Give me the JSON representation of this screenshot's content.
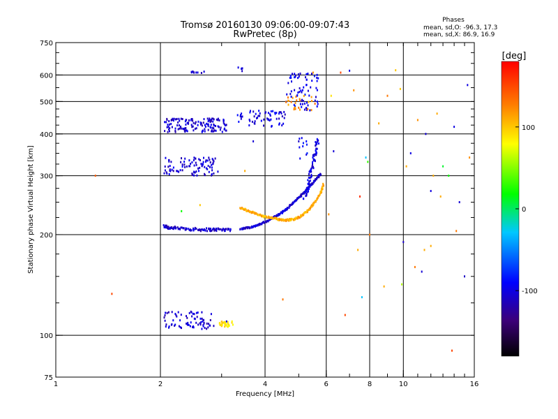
{
  "chart_data": {
    "type": "scatter",
    "title_line1": "Tromsø 20160130 09:06:00-09:07:43",
    "title_line2": "RwPretec (8p)",
    "stats": {
      "heading": "Phases",
      "line_o": "mean, sd,O: -96.3, 17.3",
      "line_x": "mean, sd,X:  86.9, 16.9"
    },
    "xlabel": "Frequency [MHz]",
    "ylabel": "Stationary phase Virtual Height [km]",
    "x_scale": "log",
    "y_scale": "log",
    "xlim": [
      1,
      16
    ],
    "ylim": [
      75,
      750
    ],
    "x_ticks": [
      {
        "value": 1,
        "label": "1"
      },
      {
        "value": 2,
        "label": "2"
      },
      {
        "value": 4,
        "label": "4"
      },
      {
        "value": 6,
        "label": "6"
      },
      {
        "value": 8,
        "label": "8"
      },
      {
        "value": 10,
        "label": "10"
      },
      {
        "value": 16,
        "label": "16"
      }
    ],
    "x_gridlines": [
      2,
      4,
      6,
      8,
      10
    ],
    "y_ticks": [
      {
        "value": 75,
        "label": "75"
      },
      {
        "value": 100,
        "label": "100"
      },
      {
        "value": 200,
        "label": "200"
      },
      {
        "value": 300,
        "label": "300"
      },
      {
        "value": 400,
        "label": "400"
      },
      {
        "value": 500,
        "label": "500"
      },
      {
        "value": 600,
        "label": "600"
      },
      {
        "value": 750,
        "label": "750"
      }
    ],
    "y_gridlines": [
      100,
      200,
      300,
      400,
      500,
      600
    ],
    "grid": true,
    "colorbar": {
      "label": "[deg]",
      "range": [
        -180,
        180
      ],
      "ticks": [
        {
          "value": 100,
          "label": "100"
        },
        {
          "value": 0,
          "label": "0"
        },
        {
          "value": -100,
          "label": "-100"
        }
      ]
    },
    "series": [
      {
        "type": "curve",
        "phase": -110,
        "x": [
          2.05,
          2.1,
          2.2,
          2.4,
          2.6,
          2.8,
          3.0,
          3.2
        ],
        "y": [
          212,
          210,
          209,
          208,
          207,
          207,
          207,
          207
        ],
        "jitter_h": 0.01,
        "jitter_f": 0.01,
        "dup": 2
      },
      {
        "type": "curve",
        "phase": -105,
        "x": [
          3.4,
          3.6,
          3.8,
          4.0,
          4.2,
          4.4,
          4.6,
          4.8,
          5.0,
          5.2,
          5.4,
          5.6,
          5.8
        ],
        "y": [
          208,
          210,
          213,
          218,
          224,
          230,
          238,
          248,
          258,
          268,
          280,
          292,
          305
        ],
        "jitter_h": 0.005,
        "jitter_f": 0.004,
        "dup": 2
      },
      {
        "type": "curve",
        "phase": 110,
        "x": [
          3.4,
          3.6,
          3.8,
          4.0,
          4.2,
          4.4,
          4.6,
          4.8,
          5.0,
          5.2,
          5.4,
          5.6,
          5.8,
          5.9
        ],
        "y": [
          240,
          235,
          230,
          226,
          224,
          222,
          221,
          222,
          225,
          231,
          240,
          252,
          268,
          285
        ],
        "jitter_h": 0.006,
        "jitter_f": 0.004,
        "dup": 2
      },
      {
        "type": "curve",
        "phase": -100,
        "x": [
          5.2,
          5.3,
          5.4,
          5.5,
          5.6,
          5.7
        ],
        "y": [
          260,
          275,
          300,
          330,
          360,
          390
        ],
        "jitter_h": 0.02,
        "jitter_f": 0.01,
        "dup": 2
      },
      {
        "type": "band",
        "phase": -105,
        "fmin": 2.05,
        "fmax": 2.95,
        "hmin": 300,
        "hmax": 340,
        "n": 95
      },
      {
        "type": "band",
        "phase": -108,
        "fmin": 2.05,
        "fmax": 3.1,
        "hmin": 405,
        "hmax": 445,
        "n": 140
      },
      {
        "type": "band",
        "phase": -100,
        "fmin": 3.3,
        "fmax": 4.6,
        "hmin": 420,
        "hmax": 470,
        "n": 60
      },
      {
        "type": "band",
        "phase": -95,
        "fmin": 4.6,
        "fmax": 5.7,
        "hmin": 470,
        "hmax": 610,
        "n": 70
      },
      {
        "type": "band",
        "phase": 120,
        "fmin": 4.5,
        "fmax": 5.6,
        "hmin": 470,
        "hmax": 520,
        "n": 25
      },
      {
        "type": "band",
        "phase": -105,
        "fmin": 2.05,
        "fmax": 2.85,
        "hmin": 104,
        "hmax": 118,
        "n": 75
      },
      {
        "type": "band",
        "phase": 90,
        "fmin": 2.95,
        "fmax": 3.25,
        "hmin": 106,
        "hmax": 110,
        "n": 30
      },
      {
        "type": "band",
        "phase": -112,
        "fmin": 2.45,
        "fmax": 2.7,
        "hmin": 608,
        "hmax": 615,
        "n": 10
      },
      {
        "type": "band",
        "phase": -105,
        "fmin": 3.35,
        "fmax": 3.45,
        "hmin": 615,
        "hmax": 640,
        "n": 5
      },
      {
        "type": "band",
        "phase": -90,
        "fmin": 5.0,
        "fmax": 5.3,
        "hmin": 330,
        "hmax": 400,
        "n": 10
      },
      {
        "type": "points",
        "x": [
          1.3,
          1.45,
          2.3,
          2.6,
          3.1,
          3.5,
          3.7,
          4.5,
          5.0,
          5.5,
          6.2,
          6.6,
          7.0,
          7.2,
          7.5,
          7.8,
          8.5,
          9.0,
          9.5,
          10.5,
          11.0,
          11.5,
          12.0,
          12.5,
          13.5,
          14.5,
          15.0,
          6.3,
          7.4,
          8.0,
          9.8,
          10.2,
          11.3,
          12.2,
          13.0,
          14.0,
          15.5,
          6.8,
          7.6,
          8.8,
          9.9,
          10.8,
          11.6,
          12.8,
          14.2,
          15.3,
          6.1,
          7.9,
          10.0,
          12.0,
          13.8
        ],
        "y": [
          300,
          133,
          235,
          245,
          110,
          310,
          380,
          128,
          380,
          610,
          520,
          610,
          618,
          540,
          260,
          340,
          430,
          520,
          620,
          350,
          440,
          180,
          270,
          460,
          300,
          250,
          150,
          355,
          180,
          200,
          545,
          320,
          155,
          300,
          320,
          420,
          340,
          115,
          130,
          140,
          142,
          160,
          400,
          260,
          205,
          560,
          230,
          330,
          190,
          185,
          90
        ],
        "phase": [
          140,
          150,
          20,
          100,
          -105,
          110,
          -105,
          130,
          -110,
          120,
          90,
          150,
          -100,
          120,
          160,
          -30,
          110,
          130,
          100,
          -100,
          120,
          110,
          -100,
          110,
          20,
          -105,
          -110,
          -105,
          110,
          130,
          100,
          110,
          -105,
          110,
          10,
          -100,
          120,
          150,
          -30,
          110,
          60,
          130,
          -105,
          110,
          130,
          -100,
          120,
          30,
          -110,
          110,
          150
        ]
      }
    ]
  }
}
